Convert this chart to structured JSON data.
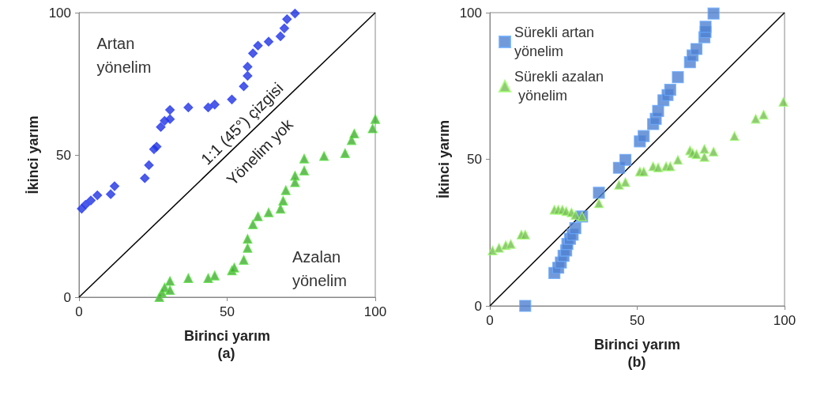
{
  "chart_data": [
    {
      "type": "scatter",
      "xlabel": "Birinci yarım",
      "ylabel": "İkinci yarım",
      "xlim": [
        0,
        100
      ],
      "ylim": [
        0,
        100
      ],
      "xticks": [
        0,
        50,
        100
      ],
      "yticks": [
        0,
        50,
        100
      ],
      "grid": false,
      "legend": false,
      "annotations": [
        "Artan yönelim",
        "1:1 (45°) çizgisi",
        "Yönelim yok",
        "Azalan yönelim",
        "(a)"
      ],
      "series": [
        {
          "color": "#2233dd",
          "marker": "diamond",
          "x": [
            0.9,
            2.2,
            4,
            6.2,
            10.7,
            12,
            22.2,
            23.6,
            25.3,
            26.2,
            27.6,
            28.9,
            30.7,
            30.7,
            36.9,
            43.6,
            45.8,
            51.6,
            55.6,
            56.9,
            56.9,
            58.7,
            60.4,
            64,
            68,
            69.3,
            70.2,
            72.9
          ],
          "values": [
            31.1,
            32.5,
            34,
            35.8,
            36.2,
            39,
            41.8,
            46.4,
            52,
            52.9,
            59.8,
            62,
            62.6,
            65.8,
            66.7,
            66.7,
            67.7,
            69.5,
            74.1,
            77.8,
            81,
            85.7,
            88.4,
            89.8,
            91.7,
            94.5,
            97.7,
            99.7
          ]
        },
        {
          "color": "#44aa33",
          "marker": "triangle",
          "x": [
            27.1,
            28,
            28.9,
            30.7,
            30.7,
            36.9,
            43.6,
            45.8,
            51.6,
            52.4,
            55.6,
            56.9,
            56.9,
            58.7,
            60.4,
            64,
            68,
            68.9,
            69.8,
            72.9,
            72.9,
            76,
            76,
            82.7,
            89.8,
            92,
            92.9,
            99.1,
            100
          ],
          "values": [
            0,
            1.6,
            3.4,
            2.5,
            5.7,
            6.7,
            6.7,
            7.6,
            9.4,
            10.4,
            13.1,
            17.3,
            20.5,
            25.6,
            28.4,
            29.8,
            31.1,
            33.9,
            37.6,
            40.4,
            42.7,
            44.5,
            48.7,
            49.6,
            50.6,
            55.2,
            57.5,
            59.3,
            62.6
          ]
        },
        {
          "type": "line",
          "color": "#000000",
          "marker": "none",
          "x": [
            0,
            100
          ],
          "values": [
            0,
            100
          ]
        }
      ]
    },
    {
      "type": "scatter",
      "xlabel": "Birinci yarım",
      "ylabel": "İkinci yarım",
      "xlim": [
        0,
        100
      ],
      "ylim": [
        0,
        100
      ],
      "xticks": [
        0,
        50,
        100
      ],
      "yticks": [
        0,
        50,
        100
      ],
      "grid": false,
      "legend": "top left",
      "annotations": [
        "(b)"
      ],
      "series": [
        {
          "name": "Sürekli artan yönelim",
          "color": "#4f7fd0",
          "marker": "square",
          "x": [
            12,
            21.9,
            23.2,
            24.1,
            25,
            25.9,
            26.3,
            27.2,
            28.1,
            29,
            31.3,
            37,
            43.8,
            46,
            50.9,
            52.2,
            55.4,
            56.3,
            57.1,
            58.9,
            60.3,
            61.2,
            63.8,
            67.9,
            68.8,
            70.1,
            72.8,
            73.2,
            73.2,
            75.9
          ],
          "values": [
            0,
            11.2,
            13,
            14.8,
            17.1,
            18.9,
            21.1,
            22.9,
            24.3,
            26.5,
            30.5,
            38.6,
            47.1,
            49.8,
            56.1,
            57.9,
            62,
            63.8,
            66.5,
            70.1,
            71.9,
            73.7,
            78,
            83.1,
            85.4,
            87.6,
            91.6,
            93.4,
            95.2,
            99.7
          ]
        },
        {
          "name": "Sürekli azalan yönelim",
          "color": "#77bb55",
          "marker": "triangle",
          "x": [
            0.9,
            3.1,
            5.4,
            7.1,
            10.7,
            12,
            21.9,
            23.2,
            24.6,
            25.9,
            27.7,
            29,
            31.3,
            37,
            43.8,
            46,
            50.9,
            52.2,
            55.4,
            57.1,
            59.8,
            61.2,
            63.8,
            67.9,
            68.8,
            70.1,
            72.8,
            72.8,
            75.9,
            83,
            90.2,
            92.9,
            99.6
          ],
          "values": [
            18.9,
            19.8,
            20.7,
            21.1,
            24.3,
            24.3,
            32.8,
            32.8,
            32.8,
            32.3,
            31.9,
            31,
            30.5,
            35,
            41.3,
            42.2,
            45.8,
            45.8,
            47.6,
            47.2,
            47.6,
            47.6,
            49.8,
            53,
            52.1,
            51.7,
            53.5,
            50.8,
            52.6,
            57.9,
            63.8,
            65.2,
            69.6
          ]
        },
        {
          "type": "line",
          "color": "#000000",
          "marker": "none",
          "x": [
            0,
            100
          ],
          "values": [
            0,
            100
          ]
        }
      ]
    }
  ]
}
